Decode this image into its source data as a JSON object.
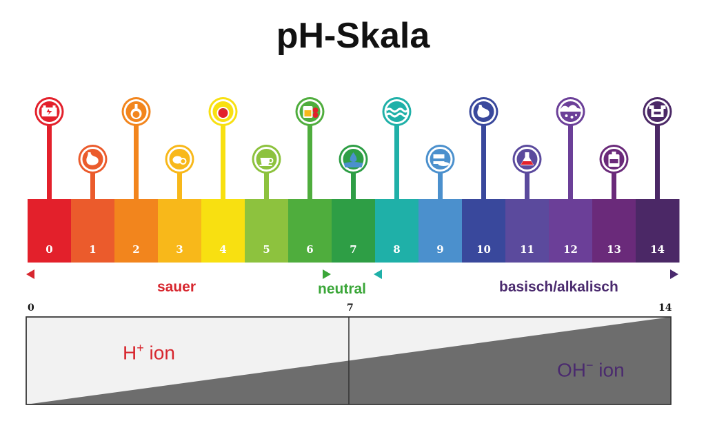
{
  "title": "pH-Skala",
  "scale": {
    "cells": [
      {
        "label": "0",
        "color": "#e3202b",
        "icon": "car-battery-icon",
        "high": true
      },
      {
        "label": "1",
        "color": "#eb5b2c",
        "icon": "stomach-icon",
        "high": false
      },
      {
        "label": "2",
        "color": "#f2851d",
        "icon": "vinegar-bottle-icon",
        "high": true
      },
      {
        "label": "3",
        "color": "#f8b81a",
        "icon": "lemon-icon",
        "high": false
      },
      {
        "label": "4",
        "color": "#f8e011",
        "icon": "tomato-icon",
        "high": true
      },
      {
        "label": "5",
        "color": "#8dc23e",
        "icon": "coffee-icon",
        "high": false
      },
      {
        "label": "6",
        "color": "#4fad3d",
        "icon": "milk-jar-icon",
        "high": true
      },
      {
        "label": "7",
        "color": "#2e9e45",
        "icon": "water-drop-icon",
        "high": false
      },
      {
        "label": "8",
        "color": "#1fb0a8",
        "icon": "sea-water-icon",
        "high": true
      },
      {
        "label": "9",
        "color": "#4b90cd",
        "icon": "baking-soda-icon",
        "high": false
      },
      {
        "label": "10",
        "color": "#39489c",
        "icon": "antacid-stomach-icon",
        "high": true
      },
      {
        "label": "11",
        "color": "#5b4a9d",
        "icon": "ammonia-flask-icon",
        "high": false
      },
      {
        "label": "12",
        "color": "#6b3f98",
        "icon": "soapy-water-icon",
        "high": true
      },
      {
        "label": "13",
        "color": "#6a2a7a",
        "icon": "bleach-bottle-icon",
        "high": false
      },
      {
        "label": "14",
        "color": "#4b2866",
        "icon": "drain-cleaner-icon",
        "high": true
      }
    ]
  },
  "arrows": {
    "sauer": "sauer",
    "neutral": "neutral",
    "basisch": "basisch/alkalisch",
    "sauer_color": "#d7262e",
    "neutral_color": "#3aa638",
    "basisch_color": "#4a2a6e"
  },
  "ions": {
    "h_base": "H",
    "h_sup": "+",
    "h_word": "ion",
    "oh_base": "OH",
    "oh_sup": "−",
    "oh_word": "ion"
  },
  "ion_axis": {
    "ticks": [
      "0",
      "7",
      "14"
    ],
    "fill_color": "#6d6d6d",
    "bg_color": "#f2f2f2"
  }
}
